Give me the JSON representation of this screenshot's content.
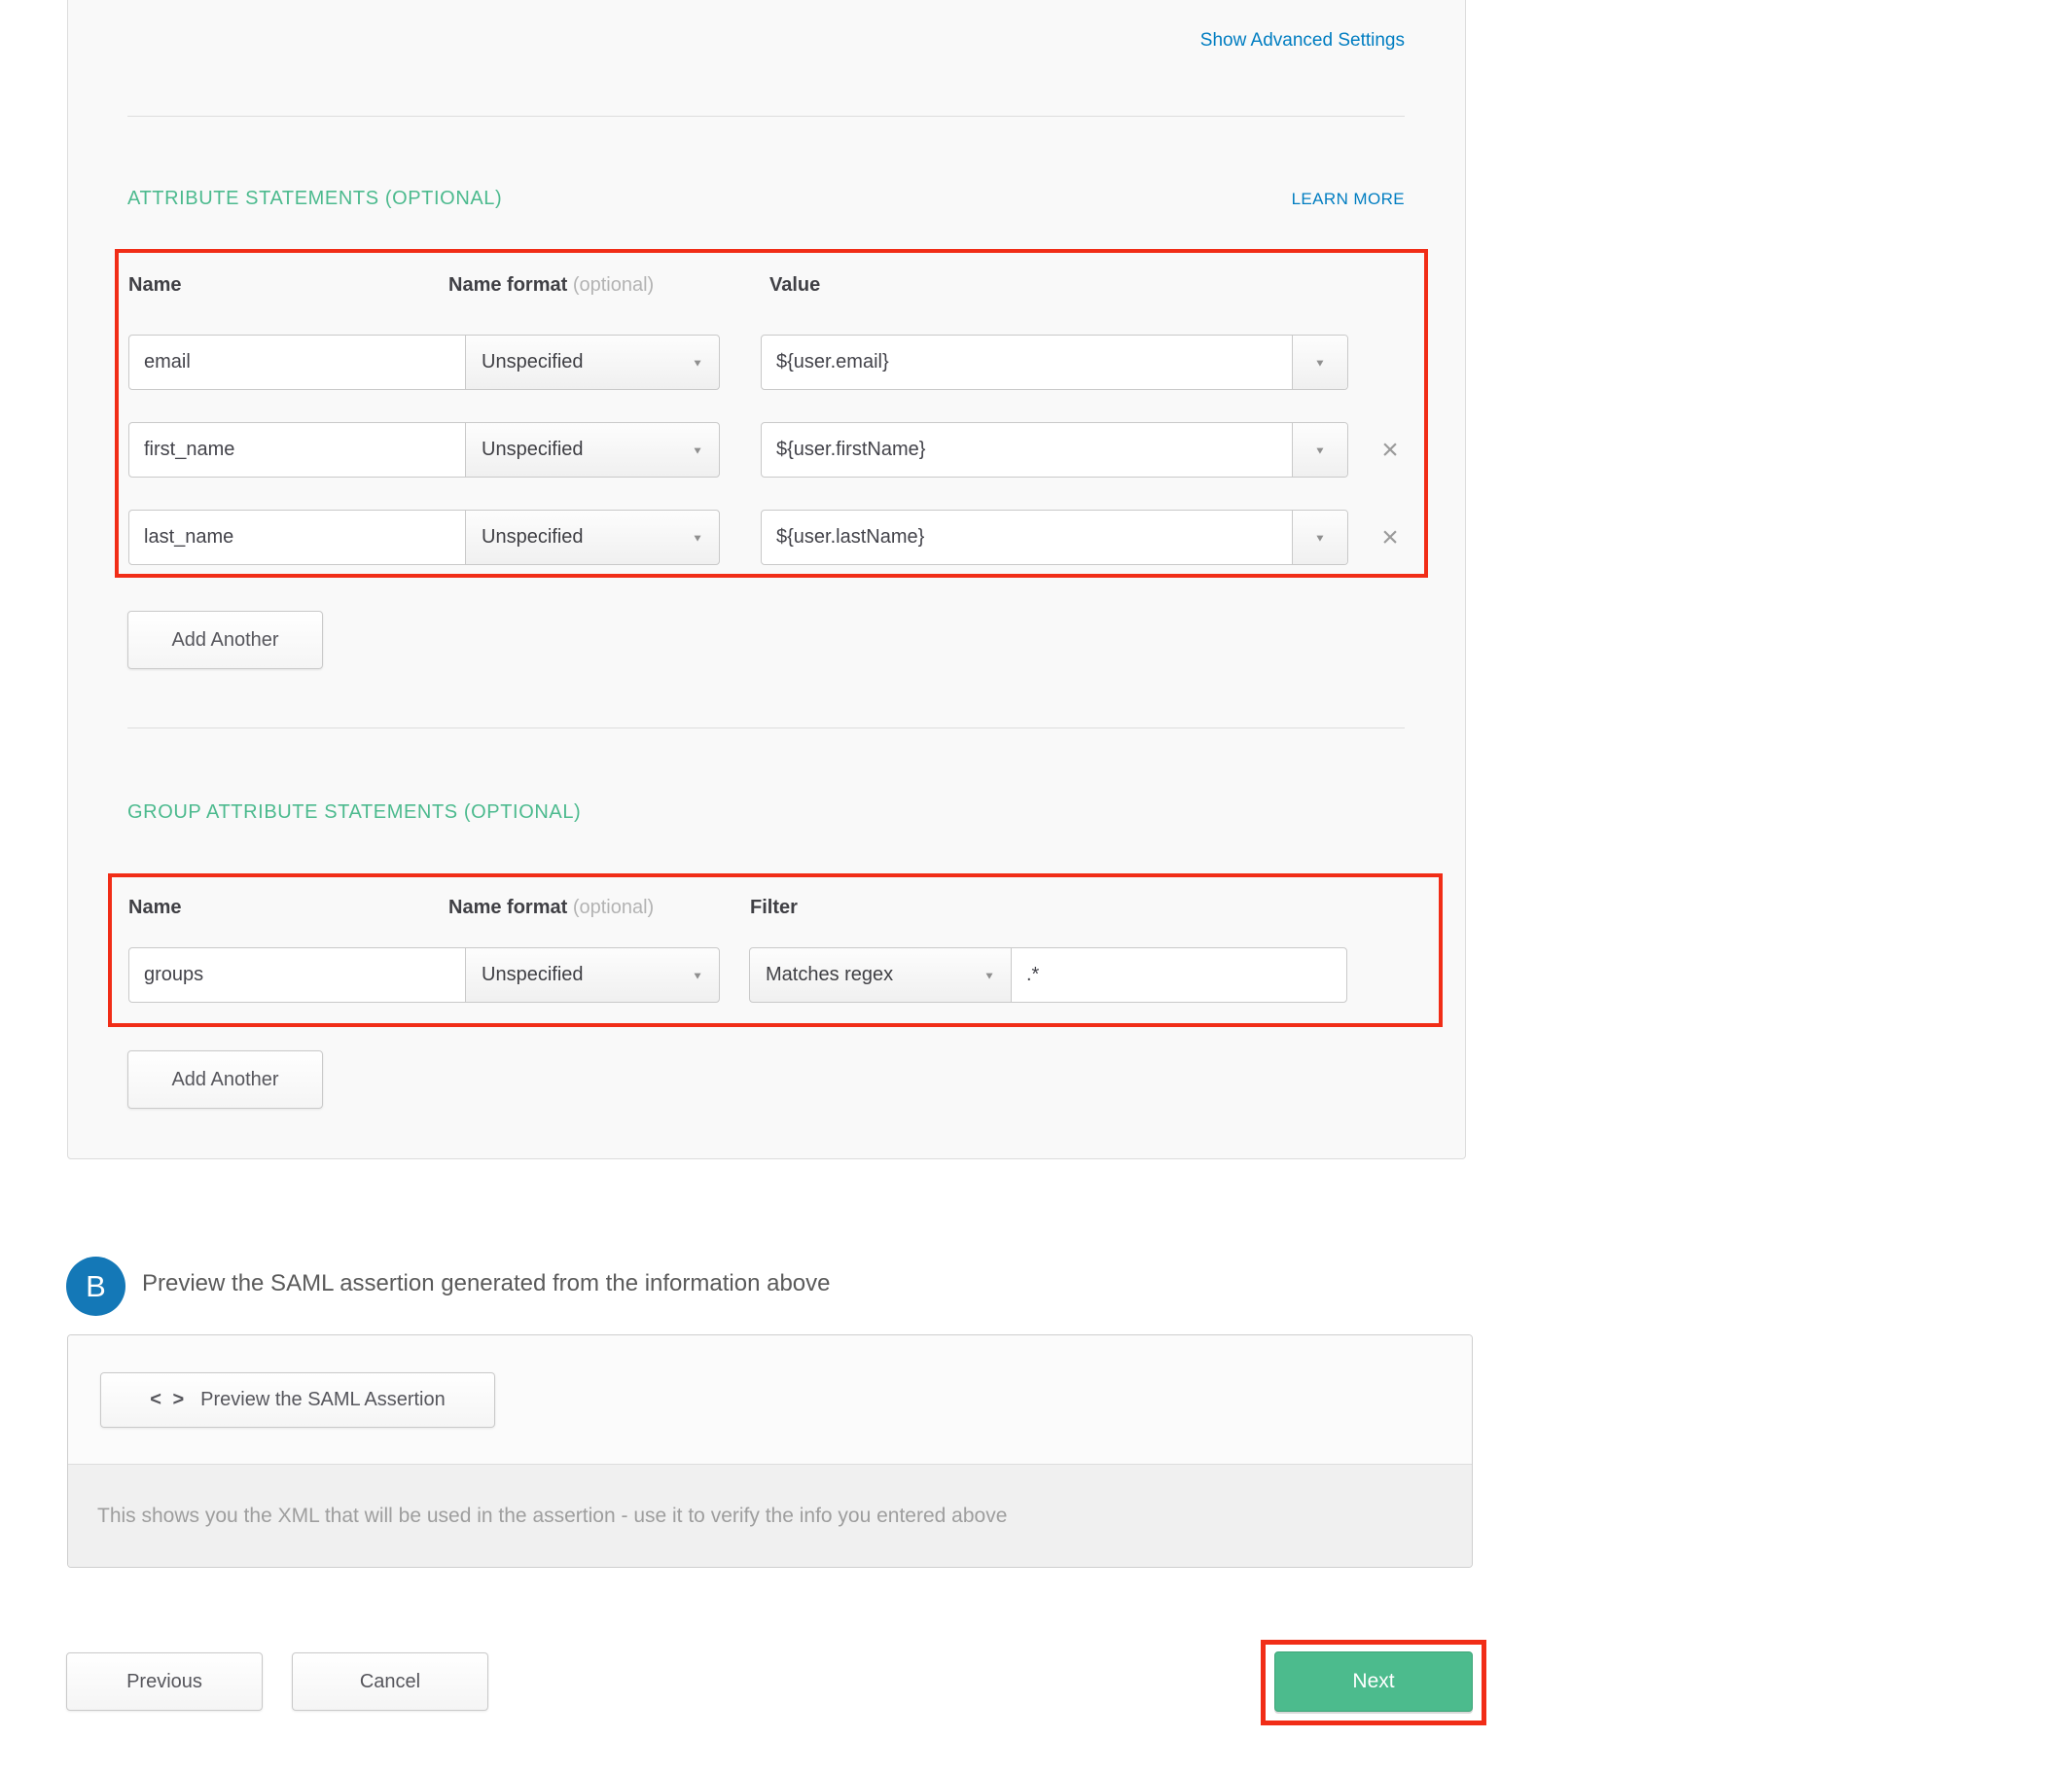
{
  "icons": {
    "chevron_down": "▼",
    "close": "×",
    "code": "< >"
  },
  "colors": {
    "accent_green": "#4cba8e",
    "link_blue": "#007dc1",
    "highlight_red": "#f12d17",
    "button_green": "#4cbb8d",
    "badge_blue": "#1478b7"
  },
  "panel": {
    "show_advanced_settings": "Show Advanced Settings",
    "attribute_statements": {
      "title": "ATTRIBUTE STATEMENTS (OPTIONAL)",
      "learn_more": "LEARN MORE",
      "headers": {
        "name": "Name",
        "name_format": "Name format",
        "optional": "(optional)",
        "value": "Value"
      },
      "rows": [
        {
          "name": "email",
          "format": "Unspecified",
          "value": "${user.email}"
        },
        {
          "name": "first_name",
          "format": "Unspecified",
          "value": "${user.firstName}"
        },
        {
          "name": "last_name",
          "format": "Unspecified",
          "value": "${user.lastName}"
        }
      ],
      "add_button": "Add Another"
    },
    "group_attribute_statements": {
      "title": "GROUP ATTRIBUTE STATEMENTS (OPTIONAL)",
      "headers": {
        "name": "Name",
        "name_format": "Name format",
        "optional": "(optional)",
        "filter": "Filter"
      },
      "rows": [
        {
          "name": "groups",
          "format": "Unspecified",
          "filter_type": "Matches regex",
          "filter_value": ".*"
        }
      ],
      "add_button": "Add Another"
    }
  },
  "section_b": {
    "badge": "B",
    "title": "Preview the SAML assertion generated from the information above",
    "preview_button": "Preview the SAML Assertion",
    "hint": "This shows you the XML that will be used in the assertion - use it to verify the info you entered above"
  },
  "footer": {
    "previous": "Previous",
    "cancel": "Cancel",
    "next": "Next"
  }
}
